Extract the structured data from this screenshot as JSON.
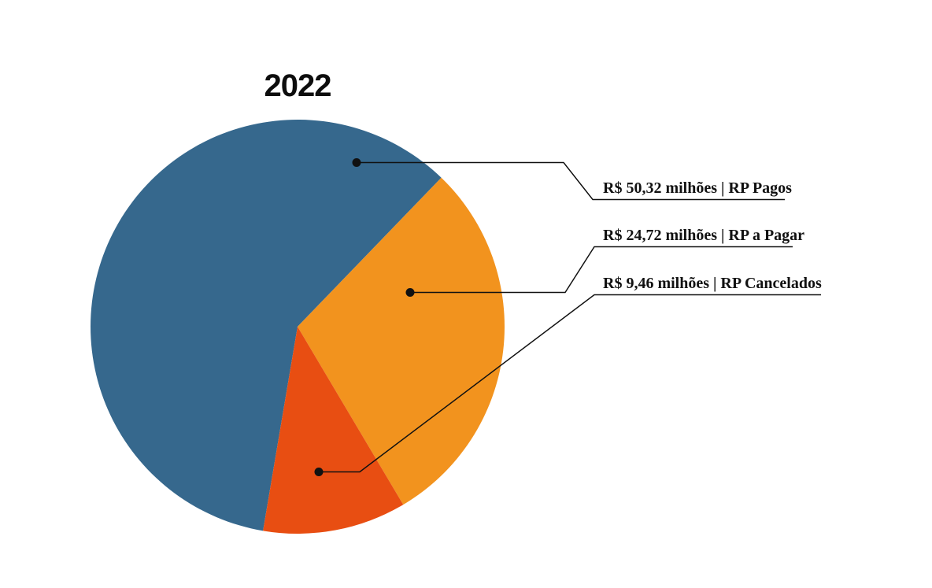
{
  "page": {
    "background_color": "#FFFFFF"
  },
  "chart_data": {
    "type": "pie",
    "title": "2022",
    "unit": "R$ milhões",
    "legend_position": "right-callouts",
    "grid": false,
    "rotation_deg_cw_from_top": 189.6,
    "line_color": "#111111",
    "slices": [
      {
        "label": "RP Pagos",
        "value": 50.32,
        "value_display": "R$ 50,32 milhões",
        "callout": "R$ 50,32 milhões | RP Pagos",
        "color": "#36688D"
      },
      {
        "label": "RP a Pagar",
        "value": 24.72,
        "value_display": "R$ 24,72 milhões",
        "callout": "R$ 24,72 milhões | RP a Pagar",
        "color": "#F2931E"
      },
      {
        "label": "RP Cancelados",
        "value": 9.46,
        "value_display": "R$ 9,46 milhões",
        "callout": "R$ 9,46 milhões | RP Cancelados",
        "color": "#E84E12"
      }
    ]
  }
}
